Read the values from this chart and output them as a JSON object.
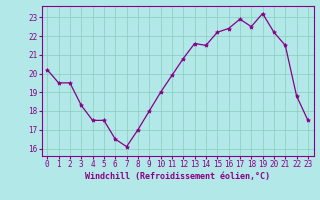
{
  "x": [
    0,
    1,
    2,
    3,
    4,
    5,
    6,
    7,
    8,
    9,
    10,
    11,
    12,
    13,
    14,
    15,
    16,
    17,
    18,
    19,
    20,
    21,
    22,
    23
  ],
  "y": [
    20.2,
    19.5,
    19.5,
    18.3,
    17.5,
    17.5,
    16.5,
    16.1,
    17.0,
    18.0,
    19.0,
    19.9,
    20.8,
    21.6,
    21.5,
    22.2,
    22.4,
    22.9,
    22.5,
    23.2,
    22.2,
    21.5,
    18.8,
    17.5
  ],
  "line_color": "#880088",
  "marker": "*",
  "marker_color": "#880088",
  "bg_color": "#b3e8e8",
  "grid_color": "#88ccbb",
  "xlabel": "Windchill (Refroidissement éolien,°C)",
  "xlabel_color": "#880088",
  "tick_color": "#880088",
  "spine_color": "#880088",
  "ylim": [
    15.6,
    23.6
  ],
  "xlim": [
    -0.5,
    23.5
  ],
  "yticks": [
    16,
    17,
    18,
    19,
    20,
    21,
    22,
    23
  ],
  "xticks": [
    0,
    1,
    2,
    3,
    4,
    5,
    6,
    7,
    8,
    9,
    10,
    11,
    12,
    13,
    14,
    15,
    16,
    17,
    18,
    19,
    20,
    21,
    22,
    23
  ],
  "tick_fontsize": 5.5,
  "xlabel_fontsize": 6.0,
  "linewidth": 0.9,
  "markersize": 3.0
}
